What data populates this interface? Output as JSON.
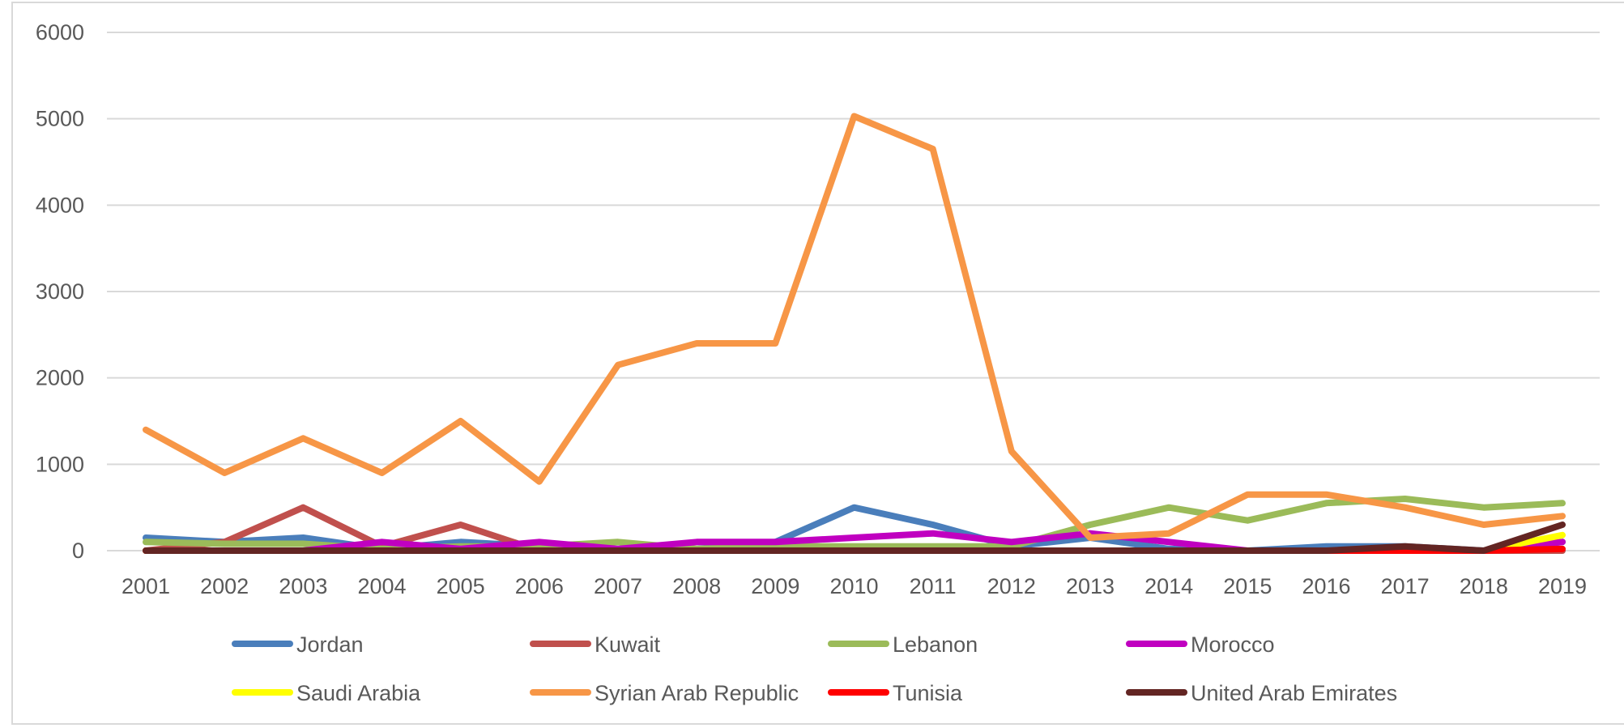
{
  "chart_data": {
    "type": "line",
    "title": "",
    "xlabel": "",
    "ylabel": "",
    "ylim": [
      0,
      6000
    ],
    "yticks": [
      0,
      1000,
      2000,
      3000,
      4000,
      5000,
      6000
    ],
    "grid": true,
    "legend_position": "bottom",
    "categories": [
      "2001",
      "2002",
      "2003",
      "2004",
      "2005",
      "2006",
      "2007",
      "2008",
      "2009",
      "2010",
      "2011",
      "2012",
      "2013",
      "2014",
      "2015",
      "2016",
      "2017",
      "2018",
      "2019"
    ],
    "series": [
      {
        "name": "Jordan",
        "color": "#4a7ebb",
        "values": [
          150,
          100,
          150,
          20,
          100,
          50,
          20,
          20,
          100,
          500,
          300,
          50,
          150,
          20,
          0,
          50,
          50,
          0,
          100
        ]
      },
      {
        "name": "Kuwait",
        "color": "#c0504d",
        "values": [
          0,
          100,
          500,
          50,
          300,
          0,
          0,
          0,
          0,
          0,
          0,
          0,
          0,
          0,
          0,
          0,
          0,
          0,
          0
        ]
      },
      {
        "name": "Lebanon",
        "color": "#9bbb59",
        "values": [
          100,
          80,
          80,
          20,
          50,
          50,
          100,
          20,
          50,
          50,
          50,
          50,
          300,
          500,
          350,
          550,
          600,
          500,
          550
        ]
      },
      {
        "name": "Morocco",
        "color": "#c000c0",
        "values": [
          0,
          0,
          0,
          100,
          20,
          100,
          20,
          100,
          100,
          150,
          200,
          100,
          200,
          100,
          0,
          0,
          0,
          0,
          100
        ]
      },
      {
        "name": "Saudi Arabia",
        "color": "#ffff00",
        "values": [
          0,
          0,
          0,
          0,
          0,
          0,
          0,
          0,
          0,
          0,
          0,
          0,
          0,
          0,
          0,
          0,
          0,
          0,
          180
        ]
      },
      {
        "name": "Syrian Arab Republic",
        "color": "#f79646",
        "values": [
          1400,
          900,
          1300,
          900,
          1500,
          800,
          2150,
          2400,
          2400,
          5030,
          4650,
          1150,
          150,
          200,
          650,
          650,
          500,
          300,
          400
        ]
      },
      {
        "name": "Tunisia",
        "color": "#ff0000",
        "values": [
          0,
          0,
          0,
          0,
          0,
          0,
          0,
          0,
          0,
          0,
          0,
          0,
          0,
          0,
          0,
          0,
          0,
          0,
          20
        ]
      },
      {
        "name": "United Arab Emirates",
        "color": "#632523",
        "values": [
          0,
          0,
          0,
          0,
          0,
          0,
          0,
          0,
          0,
          0,
          0,
          0,
          0,
          0,
          0,
          0,
          50,
          0,
          300
        ]
      }
    ]
  }
}
